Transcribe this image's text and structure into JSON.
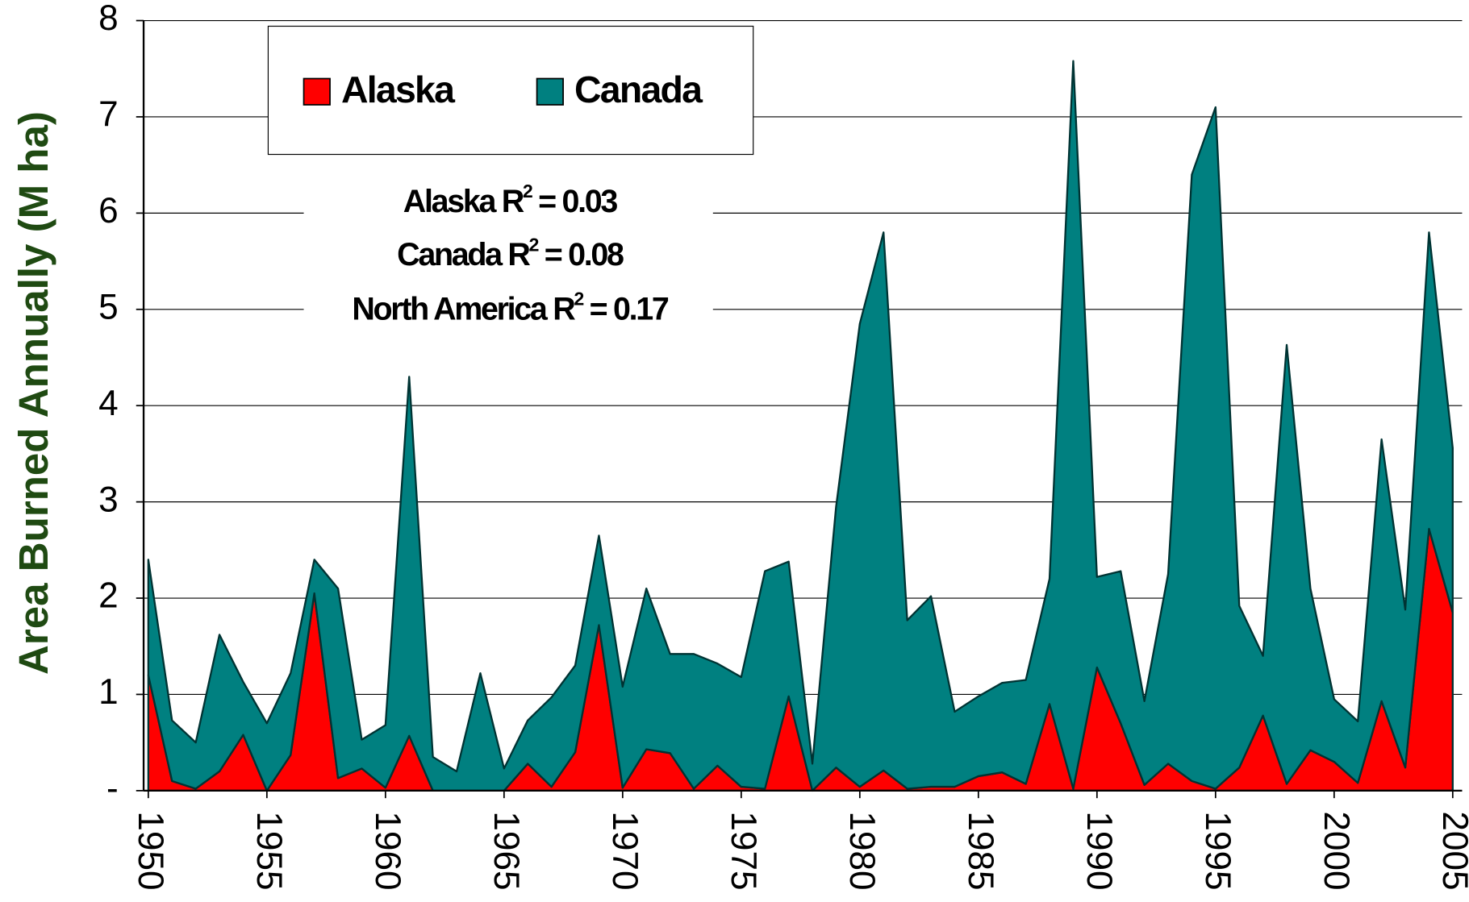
{
  "chart_data": {
    "type": "stacked-area",
    "y_label": "Area Burned Annually (M ha)",
    "x": [
      1950,
      1951,
      1952,
      1953,
      1954,
      1955,
      1956,
      1957,
      1958,
      1959,
      1960,
      1961,
      1962,
      1963,
      1964,
      1965,
      1966,
      1967,
      1968,
      1969,
      1970,
      1971,
      1972,
      1973,
      1974,
      1975,
      1976,
      1977,
      1978,
      1979,
      1980,
      1981,
      1982,
      1983,
      1984,
      1985,
      1986,
      1987,
      1988,
      1989,
      1990,
      1991,
      1992,
      1993,
      1994,
      1995,
      1996,
      1997,
      1998,
      1999,
      2000,
      2001,
      2002,
      2003,
      2004,
      2005
    ],
    "series": [
      {
        "name": "Alaska",
        "color": "#ff0000",
        "values": [
          1.2,
          0.1,
          0.02,
          0.2,
          0.58,
          0.0,
          0.37,
          2.05,
          0.13,
          0.23,
          0.03,
          0.57,
          0.0,
          0.0,
          0.0,
          0.0,
          0.28,
          0.04,
          0.4,
          1.72,
          0.03,
          0.43,
          0.39,
          0.02,
          0.26,
          0.04,
          0.02,
          0.98,
          0.0,
          0.24,
          0.04,
          0.21,
          0.02,
          0.04,
          0.04,
          0.15,
          0.19,
          0.07,
          0.9,
          0.02,
          1.28,
          0.7,
          0.06,
          0.28,
          0.1,
          0.02,
          0.24,
          0.78,
          0.07,
          0.42,
          0.3,
          0.08,
          0.93,
          0.24,
          2.72,
          1.85
        ]
      },
      {
        "name": "Canada",
        "color": "#008080",
        "values": [
          1.2,
          0.63,
          0.48,
          1.42,
          0.55,
          0.7,
          0.85,
          0.35,
          1.97,
          0.3,
          0.65,
          3.73,
          0.35,
          0.2,
          1.22,
          0.23,
          0.45,
          0.93,
          0.9,
          0.93,
          1.05,
          1.67,
          1.03,
          1.4,
          1.06,
          1.14,
          2.26,
          1.4,
          0.28,
          2.71,
          4.81,
          5.59,
          1.75,
          1.98,
          0.78,
          0.83,
          0.93,
          1.08,
          1.3,
          7.56,
          0.94,
          1.58,
          0.87,
          1.97,
          6.3,
          7.08,
          1.68,
          0.62,
          4.56,
          1.68,
          0.65,
          0.64,
          2.72,
          1.64,
          3.08,
          1.71
        ]
      }
    ],
    "xlim": [
      1950,
      2005
    ],
    "xticks": [
      1950,
      1955,
      1960,
      1965,
      1970,
      1975,
      1980,
      1985,
      1990,
      1995,
      2000,
      2005
    ],
    "ylim": [
      0,
      8
    ],
    "yticks": [
      {
        "value": 0,
        "label": "-"
      },
      1,
      2,
      3,
      4,
      5,
      6,
      7,
      8
    ],
    "grid": true,
    "legend": "top-left",
    "annotations": [
      {
        "label": "Alaska R",
        "exponent": "2",
        "value": " = 0.03"
      },
      {
        "label": "Canada R",
        "exponent": "2",
        "value": " = 0.08"
      },
      {
        "label": "North America R",
        "exponent": "2",
        "value": " = 0.17"
      }
    ]
  }
}
